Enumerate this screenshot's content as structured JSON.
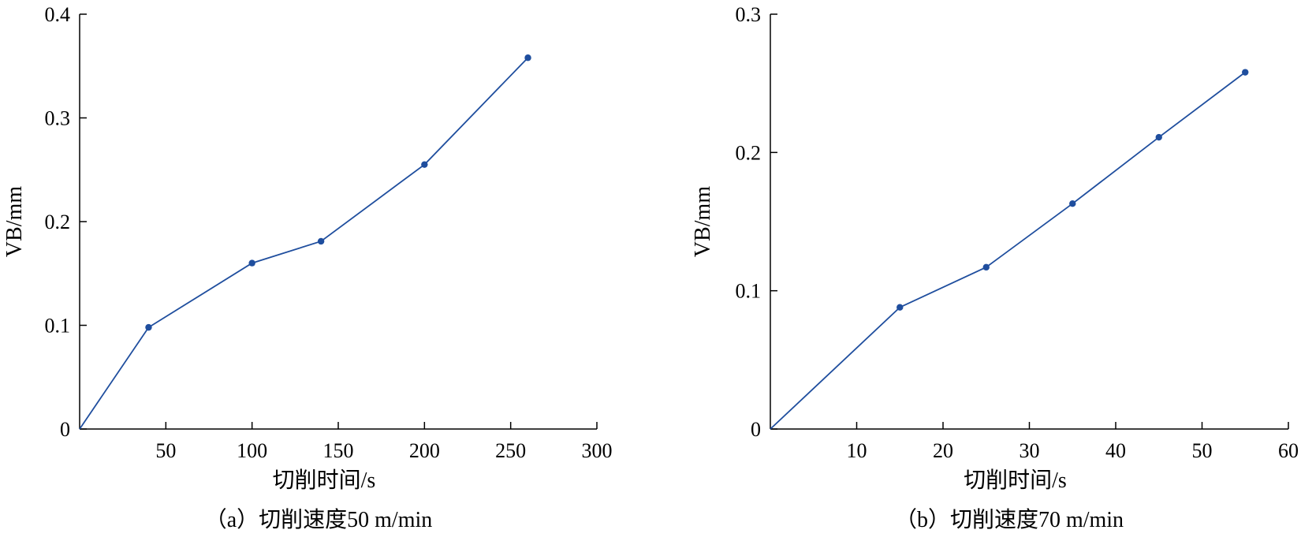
{
  "chart_data": [
    {
      "type": "line",
      "xlabel": "切削时间/s",
      "ylabel": "VB/mm",
      "caption": "（a）切削速度50 m/min",
      "xlim": [
        0,
        300
      ],
      "ylim": [
        0,
        0.4
      ],
      "xticks": [
        50,
        100,
        150,
        200,
        250,
        300
      ],
      "yticks": [
        0,
        0.1,
        0.2,
        0.3,
        0.4
      ],
      "ytick_labels": [
        "0",
        "0.1",
        "0.2",
        "0.3",
        "0.4"
      ],
      "color": "#1f4e9e",
      "series": [
        {
          "x": [
            0,
            40,
            100,
            140,
            200,
            260
          ],
          "y": [
            0,
            0.098,
            0.16,
            0.181,
            0.255,
            0.358
          ],
          "markers": [
            false,
            true,
            true,
            true,
            true,
            true
          ]
        }
      ]
    },
    {
      "type": "line",
      "xlabel": "切削时间/s",
      "ylabel": "VB/mm",
      "caption": "（b）切削速度70 m/min",
      "xlim": [
        0,
        60
      ],
      "ylim": [
        0,
        0.3
      ],
      "xticks": [
        10,
        20,
        30,
        40,
        50,
        60
      ],
      "yticks": [
        0,
        0.1,
        0.2,
        0.3
      ],
      "ytick_labels": [
        "0",
        "0.1",
        "0.2",
        "0.3"
      ],
      "color": "#1f4e9e",
      "series": [
        {
          "x": [
            0,
            15,
            25,
            35,
            45,
            55
          ],
          "y": [
            0,
            0.088,
            0.117,
            0.163,
            0.211,
            0.258
          ],
          "markers": [
            false,
            true,
            true,
            true,
            true,
            true
          ]
        }
      ]
    }
  ]
}
